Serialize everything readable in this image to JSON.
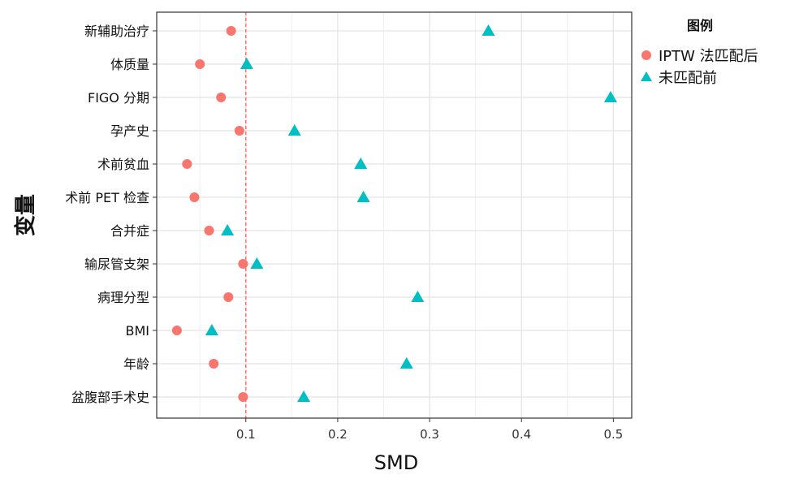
{
  "chart_data": {
    "type": "scatter",
    "title": "",
    "xlabel": "SMD",
    "ylabel": "变量",
    "xlim": [
      0.003,
      0.52
    ],
    "xticks": [
      0.1,
      0.2,
      0.3,
      0.4,
      0.5
    ],
    "xtick_labels": [
      "0.1",
      "0.2",
      "0.3",
      "0.4",
      "0.5"
    ],
    "reference_line": 0.1,
    "categories": [
      "新辅助治疗",
      "体质量",
      "FIGO 分期",
      "孕产史",
      "术前贫血",
      "术前 PET 检查",
      "合并症",
      "输尿管支架",
      "病理分型",
      "BMI",
      "年龄",
      "盆腹部手术史"
    ],
    "series": [
      {
        "name": "IPTW 法匹配后",
        "marker": "circle",
        "color": "#F8766D",
        "values": [
          0.084,
          0.05,
          0.073,
          0.093,
          0.036,
          0.044,
          0.06,
          0.097,
          0.081,
          0.025,
          0.065,
          0.097
        ]
      },
      {
        "name": "未匹配前",
        "marker": "triangle",
        "color": "#00BFC4",
        "values": [
          0.364,
          0.101,
          0.497,
          0.153,
          0.225,
          0.228,
          0.08,
          0.112,
          0.287,
          0.063,
          0.275,
          0.163
        ]
      }
    ],
    "legend": {
      "title": "图例",
      "placement": "right"
    },
    "grid": true
  }
}
